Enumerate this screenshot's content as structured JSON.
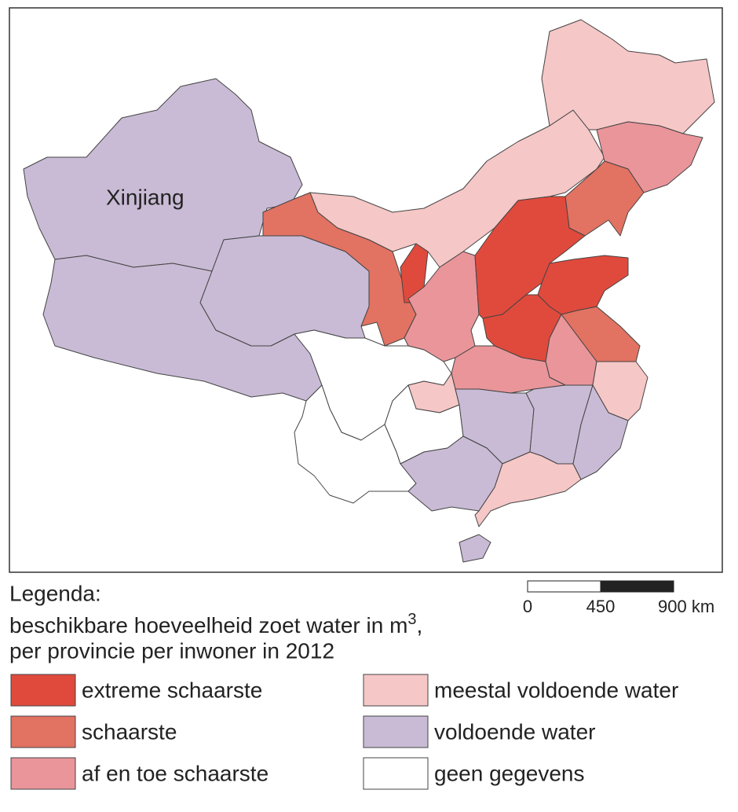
{
  "map": {
    "label": "Xinjiang"
  },
  "scale": {
    "labels": [
      "0",
      "450",
      "900 km"
    ]
  },
  "legend": {
    "title": "Legenda:",
    "subtitle": {
      "text": "beschikbare hoeveelheid zoet water in m",
      "sup": "3",
      "end": ","
    },
    "subtitle2": "per provincie per inwoner in 2012",
    "items": [
      {
        "label": "extreme schaarste",
        "color": "#e04a3c"
      },
      {
        "label": "schaarste",
        "color": "#e27262"
      },
      {
        "label": "af en toe schaarste",
        "color": "#e9959a"
      },
      {
        "label": "meestal voldoende water",
        "color": "#f5c7c6"
      },
      {
        "label": "voldoende water",
        "color": "#c9bbd5"
      },
      {
        "label": "geen gegevens",
        "color": "#ffffff"
      }
    ]
  }
}
